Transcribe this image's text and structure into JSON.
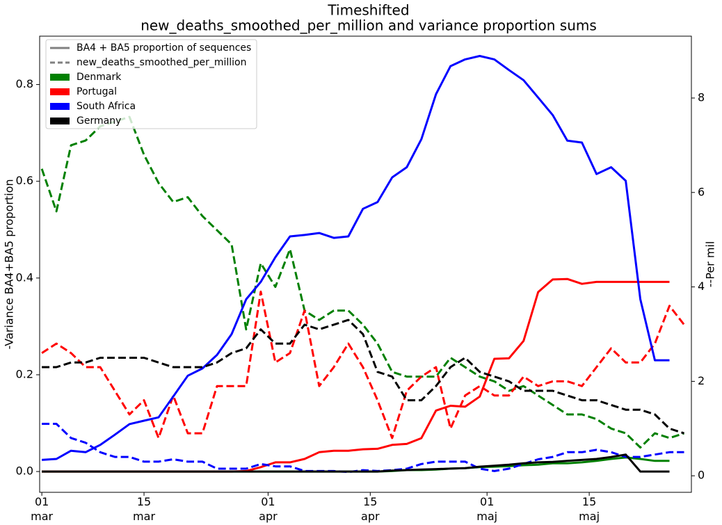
{
  "chart_data": {
    "type": "line",
    "title": "Timeshifted",
    "subtitle": "new_deaths_smoothed_per_million and variance proportion sums",
    "y_label": "-Variance BA4+BA5 proportion",
    "y2_label": "--Per mil",
    "legend_styles": [
      {
        "label": "BA4 + BA5 proportion of sequences",
        "line": "solid"
      },
      {
        "label": "new_deaths_smoothed_per_million",
        "line": "dashed"
      }
    ],
    "legend_position": "upper left",
    "style_color": "#808080",
    "x": [
      0,
      2,
      4,
      6,
      8,
      10,
      12,
      14,
      16,
      18,
      20,
      22,
      24,
      26,
      28,
      30,
      32,
      34,
      36,
      38,
      40,
      42,
      44,
      46,
      48,
      50,
      52,
      54,
      56,
      58,
      60,
      62,
      64,
      66,
      68,
      70,
      72,
      74,
      76,
      78,
      80,
      82,
      84,
      86,
      88
    ],
    "xlim": [
      -0.3,
      89.0
    ],
    "xticks": [
      {
        "value": 0,
        "label": "01\nmar"
      },
      {
        "value": 14,
        "label": "15\nmar"
      },
      {
        "value": 31,
        "label": "01\napr"
      },
      {
        "value": 45,
        "label": "15\napr"
      },
      {
        "value": 61,
        "label": "01\nmaj"
      },
      {
        "value": 75,
        "label": "15\nmaj"
      }
    ],
    "ylim": [
      -0.043,
      0.9
    ],
    "yticks": [
      {
        "value": 0,
        "label": "0.0"
      },
      0.2,
      0.4,
      0.6,
      0.8
    ],
    "y2lim": [
      -0.35,
      9.31
    ],
    "y2ticks": [
      0,
      2,
      4,
      6,
      8
    ],
    "series": [
      {
        "name": "Denmark",
        "color": "#008000",
        "values": [
          0,
          0,
          0,
          0,
          0,
          0,
          0,
          0,
          0,
          0,
          0,
          0,
          0,
          0,
          0,
          0,
          0,
          0,
          0,
          0,
          0,
          0,
          0,
          0,
          0.001,
          0.003,
          0.003,
          0.004,
          0.006,
          0.007,
          0.009,
          0.01,
          0.011,
          0.013,
          0.014,
          0.017,
          0.017,
          0.019,
          0.022,
          0.026,
          0.029,
          0.026,
          0.022,
          0.022,
          null
        ],
        "values_y2": [
          6.5,
          5.6,
          7.0,
          7.1,
          7.4,
          7.5,
          7.6,
          6.8,
          6.2,
          5.8,
          5.9,
          5.5,
          5.2,
          4.9,
          3.1,
          4.5,
          4.0,
          4.8,
          3.5,
          3.3,
          3.5,
          3.5,
          3.2,
          2.8,
          2.2,
          2.1,
          2.1,
          2.1,
          2.5,
          2.3,
          2.1,
          2.0,
          1.8,
          1.9,
          1.7,
          1.5,
          1.3,
          1.3,
          1.2,
          1.0,
          0.9,
          0.6,
          0.9,
          0.8,
          0.9
        ]
      },
      {
        "name": "Portugal",
        "color": "#ff0000",
        "values": [
          0,
          0,
          0,
          0,
          0,
          0,
          0,
          0,
          0,
          0,
          0,
          0,
          0,
          0,
          0.001,
          0.009,
          0.019,
          0.019,
          0.026,
          0.04,
          0.043,
          0.043,
          0.046,
          0.047,
          0.055,
          0.057,
          0.069,
          0.126,
          0.136,
          0.134,
          0.155,
          0.233,
          0.234,
          0.27,
          0.371,
          0.397,
          0.398,
          0.388,
          0.392,
          0.392,
          0.392,
          0.392,
          0.392,
          0.392,
          null
        ],
        "values_y2": [
          2.6,
          2.8,
          2.6,
          2.3,
          2.3,
          1.8,
          1.3,
          1.6,
          0.8,
          1.7,
          0.9,
          0.9,
          1.9,
          1.9,
          1.9,
          3.9,
          2.4,
          2.6,
          3.5,
          1.9,
          2.3,
          2.8,
          2.3,
          1.6,
          0.8,
          1.8,
          2.1,
          2.3,
          1.0,
          1.7,
          1.9,
          1.7,
          1.7,
          2.1,
          1.9,
          2.0,
          2.0,
          1.9,
          2.3,
          2.7,
          2.4,
          2.4,
          2.8,
          3.6,
          3.2
        ]
      },
      {
        "name": "South Africa",
        "color": "#0000ff",
        "values": [
          0.024,
          0.026,
          0.043,
          0.04,
          0.055,
          0.076,
          0.098,
          0.105,
          0.112,
          0.155,
          0.198,
          0.213,
          0.241,
          0.284,
          0.356,
          0.392,
          0.443,
          0.486,
          0.489,
          0.493,
          0.483,
          0.486,
          0.543,
          0.557,
          0.608,
          0.629,
          0.687,
          0.78,
          0.838,
          0.852,
          0.859,
          0.852,
          0.83,
          0.809,
          0.773,
          0.737,
          0.684,
          0.68,
          0.615,
          0.629,
          0.601,
          0.356,
          0.23,
          0.23,
          null
        ],
        "values_y2": [
          1.1,
          1.1,
          0.8,
          0.7,
          0.5,
          0.4,
          0.4,
          0.3,
          0.3,
          0.35,
          0.3,
          0.3,
          0.15,
          0.15,
          0.15,
          0.25,
          0.2,
          0.2,
          0.1,
          0.1,
          0.1,
          0.08,
          0.12,
          0.1,
          0.12,
          0.15,
          0.25,
          0.3,
          0.3,
          0.3,
          0.15,
          0.1,
          0.15,
          0.25,
          0.35,
          0.4,
          0.5,
          0.5,
          0.55,
          0.5,
          0.4,
          0.4,
          0.45,
          0.5,
          0.5
        ]
      },
      {
        "name": "Germany",
        "color": "#000000",
        "values": [
          0,
          0,
          0,
          0,
          0,
          0,
          0,
          0,
          0,
          0,
          0,
          0,
          0,
          0,
          0,
          0,
          0,
          0,
          0,
          0,
          0,
          0,
          0,
          0,
          0.002,
          0.003,
          0.004,
          0.005,
          0.006,
          0.007,
          0.01,
          0.012,
          0.014,
          0.017,
          0.019,
          0.02,
          0.022,
          0.024,
          0.026,
          0.03,
          0.035,
          0,
          0,
          0,
          null
        ],
        "values_y2": [
          2.3,
          2.3,
          2.4,
          2.4,
          2.5,
          2.5,
          2.5,
          2.5,
          2.4,
          2.3,
          2.3,
          2.3,
          2.4,
          2.6,
          2.7,
          3.1,
          2.8,
          2.8,
          3.2,
          3.1,
          3.2,
          3.3,
          3.0,
          2.2,
          2.1,
          1.6,
          1.6,
          1.9,
          2.3,
          2.5,
          2.2,
          2.1,
          2.0,
          1.8,
          1.8,
          1.8,
          1.7,
          1.6,
          1.6,
          1.5,
          1.4,
          1.4,
          1.3,
          1.0,
          0.9
        ]
      }
    ]
  }
}
